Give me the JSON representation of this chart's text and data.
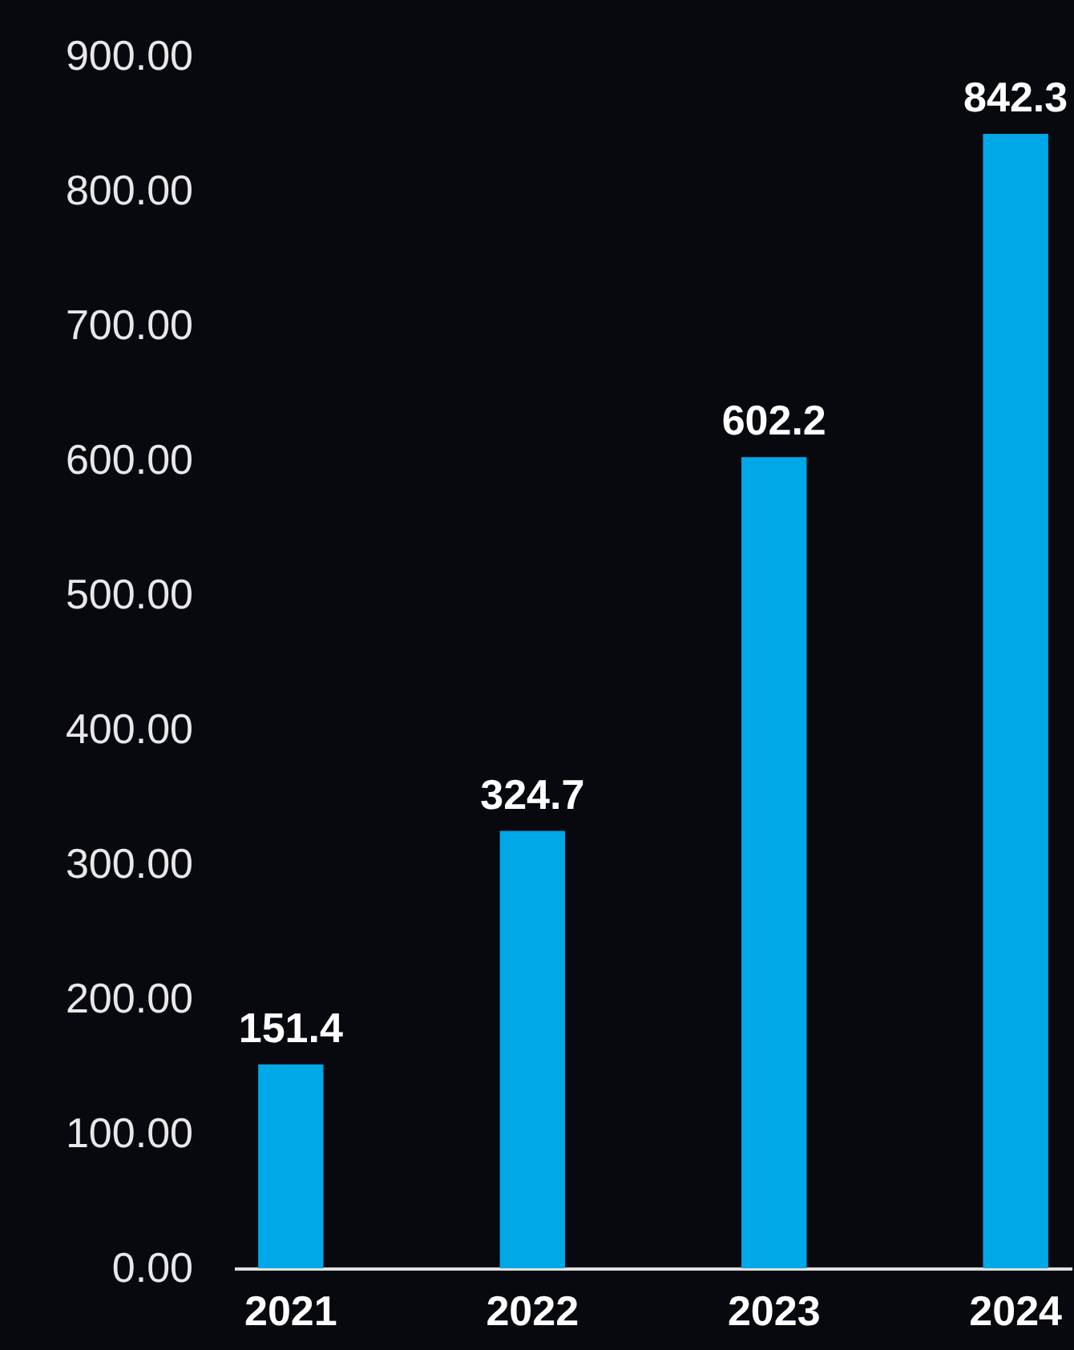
{
  "chart_data": {
    "type": "bar",
    "categories": [
      "2021",
      "2022",
      "2023",
      "2024"
    ],
    "values": [
      151.4,
      324.7,
      602.2,
      842.3
    ],
    "color": "#00a8e8",
    "ylim": [
      0,
      900
    ],
    "yticks": [
      {
        "value": 0,
        "label": "0.00"
      },
      {
        "value": 100,
        "label": "100.00"
      },
      {
        "value": 200,
        "label": "200.00"
      },
      {
        "value": 300,
        "label": "300.00"
      },
      {
        "value": 400,
        "label": "400.00"
      },
      {
        "value": 500,
        "label": "500.00"
      },
      {
        "value": 600,
        "label": "600.00"
      },
      {
        "value": 700,
        "label": "700.00"
      },
      {
        "value": 800,
        "label": "800.00"
      },
      {
        "value": 900,
        "label": "900.00"
      }
    ],
    "data_labels": true,
    "grid": false
  }
}
